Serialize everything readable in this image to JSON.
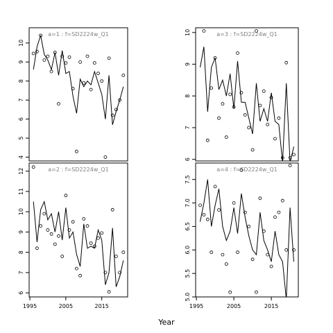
{
  "chart_data": {
    "type": "line",
    "xlabel": "Year",
    "panels": [
      {
        "strip": "a=1 : f=SD2224w_Q1",
        "ylim": [
          3.8,
          10.8
        ],
        "yticks": [
          4,
          5,
          6,
          7,
          8,
          9,
          10
        ],
        "line": {
          "x": [
            1996,
            1997,
            1998,
            1999,
            2000,
            2001,
            2002,
            2003,
            2004,
            2005,
            2006,
            2007,
            2008,
            2009,
            2010,
            2011,
            2012,
            2013,
            2014,
            2015,
            2016,
            2017,
            2018,
            2019,
            2020,
            2021
          ],
          "y": [
            8.6,
            9.8,
            10.4,
            9.4,
            9.1,
            8.6,
            9.5,
            8.3,
            9.6,
            8.4,
            8.5,
            7.2,
            6.3,
            8.1,
            7.7,
            8.0,
            7.8,
            8.5,
            7.9,
            7.3,
            6.0,
            8.3,
            5.7,
            6.4,
            7.0,
            7.7
          ]
        },
        "points": {
          "x": [
            1996,
            1997,
            1998,
            1999,
            2000,
            2001,
            2002,
            2003,
            2004,
            2005,
            2006,
            2007,
            2008,
            2009,
            2010,
            2011,
            2012,
            2013,
            2014,
            2015,
            2016,
            2017,
            2018,
            2019,
            2020,
            2021
          ],
          "y": [
            9.45,
            9.55,
            10.4,
            9.1,
            9.3,
            8.5,
            9.5,
            6.8,
            9.3,
            8.95,
            9.25,
            7.6,
            4.3,
            9.0,
            7.9,
            9.3,
            7.55,
            8.95,
            8.4,
            8.0,
            4.0,
            9.2,
            6.2,
            6.5,
            7.0,
            8.3
          ]
        }
      },
      {
        "strip": "a=3 : f=SD2224w_Q1",
        "ylim": [
          5.95,
          10.15
        ],
        "yticks": [
          6,
          7,
          8,
          9,
          10
        ],
        "line": {
          "x": [
            1996,
            1997,
            1998,
            1999,
            2000,
            2001,
            2002,
            2003,
            2004,
            2005,
            2006,
            2007,
            2008,
            2009,
            2010,
            2011,
            2012,
            2013,
            2014,
            2015,
            2016,
            2017,
            2018,
            2019,
            2020,
            2021
          ],
          "y": [
            8.9,
            9.55,
            7.5,
            8.9,
            9.2,
            8.2,
            8.5,
            8.0,
            8.7,
            7.6,
            9.1,
            7.8,
            7.8,
            7.3,
            6.8,
            8.4,
            7.2,
            7.6,
            7.2,
            8.1,
            7.2,
            7.1,
            5.9,
            8.4,
            5.9,
            6.4
          ]
        },
        "points": {
          "x": [
            1996,
            1997,
            1998,
            1999,
            2000,
            2001,
            2002,
            2003,
            2004,
            2005,
            2006,
            2007,
            2008,
            2009,
            2010,
            2011,
            2012,
            2013,
            2014,
            2015,
            2016,
            2017,
            2018,
            2019,
            2020,
            2021
          ],
          "y": [
            10.2,
            10.05,
            6.6,
            8.25,
            9.2,
            7.3,
            7.75,
            6.7,
            8.05,
            7.65,
            9.35,
            8.1,
            7.4,
            7.0,
            6.3,
            10.05,
            7.7,
            8.15,
            7.1,
            7.95,
            6.65,
            7.3,
            6.05,
            9.05,
            6.05,
            6.15
          ]
        }
      },
      {
        "strip": "a=2 : f=SD2224w_Q1",
        "ylim": [
          5.8,
          12.4
        ],
        "yticks": [
          6,
          7,
          8,
          9,
          10,
          11,
          12
        ],
        "line": {
          "x": [
            1996,
            1997,
            1998,
            1999,
            2000,
            2001,
            2002,
            2003,
            2004,
            2005,
            2006,
            2007,
            2008,
            2009,
            2010,
            2011,
            2012,
            2013,
            2014,
            2015,
            2016,
            2017,
            2018,
            2019,
            2020,
            2021
          ],
          "y": [
            10.5,
            8.5,
            10.1,
            10.5,
            9.6,
            9.9,
            9.0,
            10.0,
            8.6,
            10.2,
            8.7,
            9.0,
            7.9,
            7.3,
            9.4,
            8.2,
            8.3,
            8.2,
            9.1,
            8.6,
            6.4,
            7.0,
            9.2,
            6.3,
            6.8,
            7.6
          ]
        },
        "points": {
          "x": [
            1996,
            1997,
            1998,
            1999,
            2000,
            2001,
            2002,
            2003,
            2004,
            2005,
            2006,
            2007,
            2008,
            2009,
            2010,
            2011,
            2012,
            2013,
            2014,
            2015,
            2016,
            2017,
            2018,
            2019,
            2020,
            2021
          ],
          "y": [
            12.2,
            8.2,
            9.3,
            9.9,
            9.1,
            8.9,
            8.4,
            8.8,
            7.8,
            10.8,
            9.1,
            9.5,
            7.2,
            6.85,
            9.65,
            9.3,
            8.45,
            8.3,
            8.7,
            8.95,
            7.0,
            6.05,
            10.1,
            7.8,
            7.0,
            8.0
          ]
        }
      },
      {
        "strip": "a=4 : f=SD2224w_Q1",
        "ylim": [
          5.0,
          7.85
        ],
        "yticks": [
          5.0,
          5.5,
          6.0,
          6.5,
          7.0,
          7.5
        ],
        "line": {
          "x": [
            1996,
            1997,
            1998,
            1999,
            2000,
            2001,
            2002,
            2003,
            2004,
            2005,
            2006,
            2007,
            2008,
            2009,
            2010,
            2011,
            2012,
            2013,
            2014,
            2015,
            2016,
            2017,
            2018,
            2019,
            2020,
            2021
          ],
          "y": [
            6.6,
            7.0,
            7.5,
            6.5,
            6.95,
            7.3,
            6.5,
            6.2,
            6.4,
            6.9,
            6.35,
            7.2,
            6.7,
            6.3,
            6.0,
            5.9,
            6.8,
            6.2,
            6.0,
            5.75,
            6.4,
            5.9,
            5.75,
            4.95,
            6.9,
            5.75
          ]
        },
        "points": {
          "x": [
            1996,
            1997,
            1998,
            1999,
            2000,
            2001,
            2002,
            2003,
            2004,
            2005,
            2006,
            2007,
            2008,
            2009,
            2010,
            2011,
            2012,
            2013,
            2014,
            2015,
            2016,
            2017,
            2018,
            2019,
            2020,
            2021
          ],
          "y": [
            6.95,
            6.75,
            6.65,
            5.95,
            7.35,
            6.85,
            5.9,
            5.7,
            5.1,
            7.0,
            5.95,
            7.7,
            6.8,
            6.5,
            5.8,
            5.1,
            7.1,
            6.4,
            5.9,
            5.65,
            6.7,
            6.8,
            7.05,
            6.0,
            7.8,
            6.0
          ]
        }
      }
    ],
    "xticks": [
      1995,
      2005,
      2015
    ],
    "xlim": [
      1994.8,
      2022.2
    ]
  }
}
